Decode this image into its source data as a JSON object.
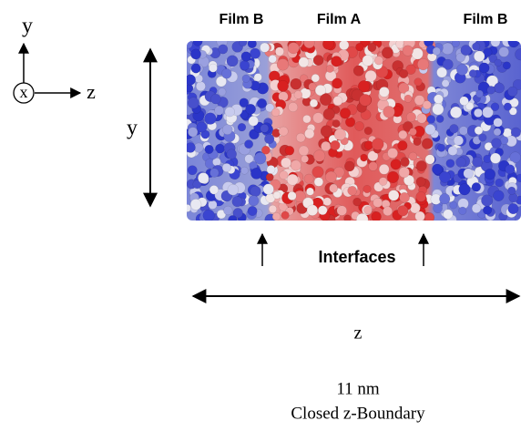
{
  "axes_icon": {
    "y": "y",
    "x": "x",
    "z": "z"
  },
  "regions": [
    {
      "label": "Film B"
    },
    {
      "label": "Film A"
    },
    {
      "label": "Film B"
    }
  ],
  "y_label": "y",
  "interfaces_label": "Interfaces",
  "z_label": "z",
  "length": "11 nm",
  "boundary": "Closed z-Boundary"
}
